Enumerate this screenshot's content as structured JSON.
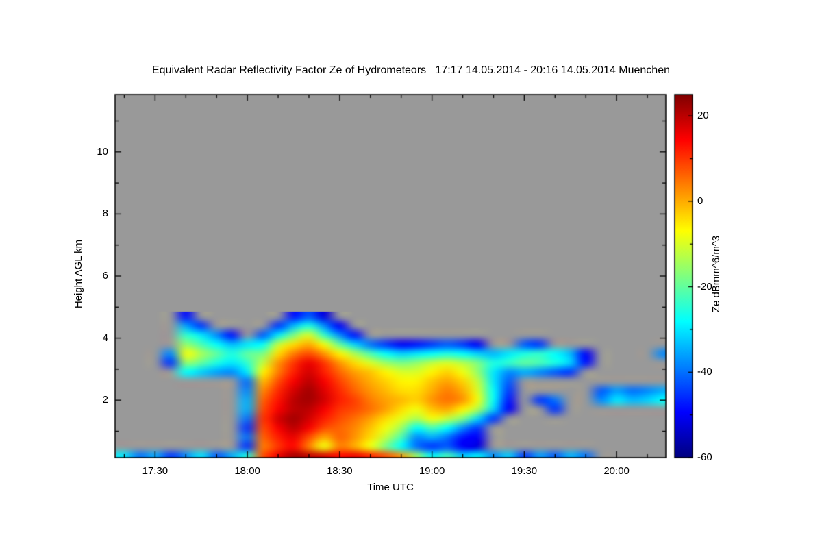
{
  "chart_data": {
    "type": "heatmap",
    "title": "Equivalent Radar Reflectivity Factor Ze of Hydrometeors   17:17 14.05.2014 - 20:16 14.05.2014 Muenchen",
    "station": "Muenchen",
    "time_start": "17:17 14.05.2014",
    "time_end": "20:16 14.05.2014",
    "xlabel": "Time UTC",
    "ylabel": "Height AGL km",
    "colorbar_label": "Ze dBmm^6/m^3",
    "background_color": "#999999",
    "frame_color": "#000000",
    "x_axis": {
      "start": "17:17",
      "end": "20:16",
      "tick_labels": [
        "17:30",
        "18:00",
        "18:30",
        "19:00",
        "19:30",
        "20:00"
      ],
      "minor_tick_step_min": 10
    },
    "y_axis": {
      "range_km": [
        0.15,
        11.85
      ],
      "tick_values": [
        2,
        4,
        6,
        8,
        10
      ],
      "minor_tick_values": [
        1,
        3,
        5,
        7,
        9,
        11
      ]
    },
    "colorbar": {
      "range": [
        -60,
        25
      ],
      "tick_values": [
        20,
        0,
        -20,
        -40,
        -60
      ],
      "minor_tick_step": 10,
      "colormap": "jet"
    },
    "no_echo": -99,
    "grid": {
      "time_start": "17:20",
      "time_step_min": 5,
      "height_start_km": 0.2,
      "height_step_km": 0.3,
      "order": "rows bottom-to-top, values in dBZe, -99 = no echo (gray)",
      "values_dbz": [
        [
          -30,
          -40,
          -35,
          -45,
          -38,
          -30,
          -42,
          -35,
          -25,
          8,
          16,
          22,
          20,
          18,
          14,
          16,
          12,
          8,
          2,
          -15,
          -28,
          -22,
          -32,
          -28,
          -38,
          -32,
          -45,
          -36,
          -42,
          -34,
          -40,
          -99,
          -99,
          -99,
          -99,
          -99
        ],
        [
          -99,
          -99,
          -99,
          -99,
          -99,
          -99,
          -99,
          -99,
          -45,
          4,
          10,
          14,
          4,
          -8,
          4,
          0,
          -8,
          -18,
          -28,
          -40,
          -45,
          -42,
          -50,
          -52,
          -99,
          -99,
          -99,
          -99,
          -99,
          -99,
          -99,
          -99,
          -99,
          -99,
          -99,
          -99
        ],
        [
          -99,
          -99,
          -99,
          -99,
          -99,
          -99,
          -99,
          -99,
          -40,
          6,
          12,
          16,
          8,
          0,
          6,
          2,
          -4,
          -12,
          -22,
          -38,
          -35,
          -40,
          -48,
          -50,
          -99,
          -99,
          -99,
          -99,
          -99,
          -99,
          -99,
          -99,
          -99,
          -99,
          -99,
          -99
        ],
        [
          -99,
          -99,
          -99,
          -99,
          -99,
          -99,
          -99,
          -99,
          -45,
          8,
          15,
          20,
          15,
          8,
          6,
          3,
          -2,
          -8,
          -15,
          -28,
          -22,
          -28,
          -38,
          -45,
          -99,
          -99,
          -99,
          -99,
          -99,
          -99,
          -99,
          -99,
          -99,
          -99,
          -99,
          -99
        ],
        [
          -99,
          -99,
          -99,
          -99,
          -99,
          -99,
          -99,
          -99,
          -40,
          10,
          18,
          22,
          18,
          12,
          8,
          5,
          1,
          -4,
          -9,
          -14,
          -8,
          -12,
          -18,
          -32,
          -45,
          -99,
          -99,
          -99,
          -99,
          -99,
          -99,
          -99,
          -99,
          -99,
          -99,
          -99
        ],
        [
          -99,
          -99,
          -99,
          -99,
          -99,
          -99,
          -99,
          -99,
          -35,
          8,
          15,
          20,
          20,
          15,
          10,
          8,
          5,
          1,
          -4,
          -8,
          -2,
          0,
          -6,
          -14,
          -32,
          -50,
          -99,
          -99,
          -45,
          -99,
          -99,
          -99,
          -99,
          -99,
          -99,
          -99
        ],
        [
          -99,
          -99,
          -99,
          -99,
          -99,
          -99,
          -99,
          -99,
          -35,
          6,
          13,
          20,
          22,
          18,
          12,
          9,
          4,
          1,
          -1,
          -3,
          2,
          5,
          2,
          -8,
          -28,
          -48,
          -99,
          -45,
          -40,
          -99,
          -99,
          -38,
          -30,
          -34,
          -32,
          -28
        ],
        [
          -99,
          -99,
          -99,
          -99,
          -99,
          -99,
          -99,
          -99,
          -38,
          3,
          11,
          18,
          22,
          17,
          11,
          6,
          2,
          -1,
          -4,
          -4,
          0,
          4,
          0,
          -10,
          -28,
          -45,
          -99,
          -99,
          -99,
          -99,
          -99,
          -42,
          -36,
          -40,
          -38,
          -35
        ],
        [
          -99,
          -99,
          -99,
          -99,
          -99,
          -99,
          -99,
          -99,
          -40,
          -1,
          8,
          15,
          20,
          15,
          9,
          4,
          0,
          -3,
          -6,
          -6,
          -2,
          1,
          -3,
          -12,
          -30,
          -42,
          -99,
          -99,
          -99,
          -99,
          -99,
          -99,
          -99,
          -99,
          -99,
          -99
        ],
        [
          -99,
          -99,
          -99,
          -99,
          -28,
          -32,
          -36,
          -38,
          -30,
          -6,
          4,
          12,
          18,
          12,
          6,
          1,
          -2,
          -6,
          -10,
          -10,
          -6,
          -3,
          -8,
          -16,
          -30,
          -38,
          -35,
          -38,
          -42,
          -45,
          -99,
          -99,
          -99,
          -99,
          -99,
          -99
        ],
        [
          -99,
          -99,
          -99,
          -45,
          -16,
          -20,
          -26,
          -30,
          -24,
          -12,
          2,
          10,
          16,
          10,
          2,
          -4,
          -10,
          -15,
          -18,
          -16,
          -12,
          -10,
          -13,
          -18,
          -26,
          -24,
          -20,
          -22,
          -26,
          -32,
          -48,
          -99,
          -99,
          -99,
          -99,
          -99
        ],
        [
          -99,
          -99,
          -99,
          -38,
          -8,
          -14,
          -20,
          -26,
          -20,
          -18,
          -4,
          4,
          8,
          2,
          -6,
          -14,
          -22,
          -28,
          -32,
          -30,
          -28,
          -26,
          -28,
          -32,
          -34,
          -30,
          -26,
          -24,
          -28,
          -34,
          -50,
          -99,
          -99,
          -99,
          -99,
          -38
        ],
        [
          -99,
          -99,
          -99,
          -99,
          -16,
          -22,
          -28,
          -34,
          -30,
          -28,
          -12,
          -4,
          0,
          -8,
          -20,
          -32,
          -40,
          -45,
          -50,
          -48,
          -45,
          -42,
          -45,
          -50,
          -99,
          -99,
          -42,
          -45,
          -99,
          -99,
          -99,
          -99,
          -99,
          -99,
          -99,
          -99
        ],
        [
          -99,
          -99,
          -99,
          -99,
          -24,
          -30,
          -38,
          -48,
          -99,
          -42,
          -30,
          -18,
          -10,
          -24,
          -38,
          -48,
          -99,
          -99,
          -99,
          -99,
          -99,
          -99,
          -99,
          -99,
          -99,
          -99,
          -99,
          -99,
          -99,
          -99,
          -99,
          -99,
          -99,
          -99,
          -99,
          -99
        ],
        [
          -99,
          -99,
          -99,
          -99,
          -36,
          -45,
          -99,
          -99,
          -99,
          -99,
          -45,
          -34,
          -26,
          -38,
          -50,
          -99,
          -99,
          -99,
          -99,
          -99,
          -99,
          -99,
          -99,
          -99,
          -99,
          -99,
          -99,
          -99,
          -99,
          -99,
          -99,
          -99,
          -99,
          -99,
          -99,
          -99
        ],
        [
          -99,
          -99,
          -99,
          -99,
          -48,
          -99,
          -99,
          -99,
          -99,
          -99,
          -99,
          -48,
          -42,
          -52,
          -99,
          -99,
          -99,
          -99,
          -99,
          -99,
          -99,
          -99,
          -99,
          -99,
          -99,
          -99,
          -99,
          -99,
          -99,
          -99,
          -99,
          -99,
          -99,
          -99,
          -99,
          -99
        ]
      ]
    }
  }
}
